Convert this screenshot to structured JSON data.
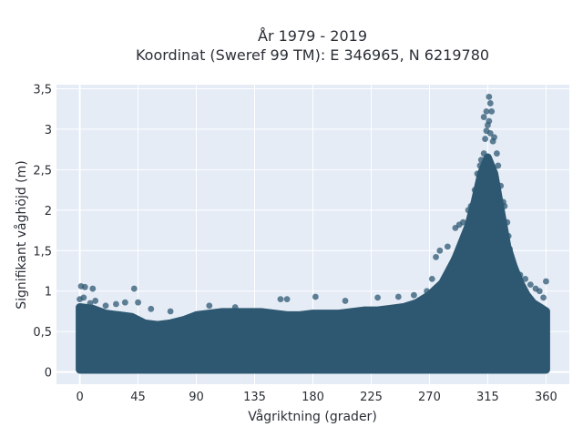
{
  "chart_data": {
    "type": "scatter",
    "title": "År 1979 - 2019",
    "subtitle": "Koordinat (Sweref 99 TM): E 346965, N 6219780",
    "xlabel": "Vågriktning (grader)",
    "ylabel": "Signifikant våghöjd (m)",
    "xlim": [
      -18,
      378
    ],
    "ylim": [
      -0.15,
      3.55
    ],
    "xticks": [
      0,
      45,
      90,
      135,
      180,
      225,
      270,
      315,
      360
    ],
    "xtick_labels": [
      "0",
      "45",
      "90",
      "135",
      "180",
      "225",
      "270",
      "315",
      "360"
    ],
    "yticks": [
      0,
      0.5,
      1,
      1.5,
      2,
      2.5,
      3,
      3.5
    ],
    "ytick_labels": [
      "0",
      "0,5",
      "1",
      "1,5",
      "2",
      "2,5",
      "3",
      "3,5"
    ],
    "grid": true,
    "background": "#e5ecf6",
    "marker_color": "#2e5871",
    "envelope": {
      "x": [
        0,
        10,
        20,
        30,
        40,
        50,
        60,
        70,
        80,
        90,
        100,
        110,
        120,
        130,
        140,
        150,
        160,
        170,
        180,
        190,
        200,
        210,
        220,
        230,
        240,
        250,
        260,
        270,
        280,
        290,
        300,
        305,
        310,
        315,
        320,
        325,
        330,
        335,
        340,
        345,
        350,
        355,
        360
      ],
      "y_max": [
        0.8,
        0.78,
        0.72,
        0.7,
        0.68,
        0.6,
        0.58,
        0.6,
        0.64,
        0.7,
        0.72,
        0.74,
        0.74,
        0.74,
        0.74,
        0.72,
        0.7,
        0.7,
        0.72,
        0.72,
        0.72,
        0.74,
        0.76,
        0.76,
        0.78,
        0.8,
        0.85,
        0.95,
        1.1,
        1.4,
        1.8,
        2.1,
        2.45,
        2.65,
        2.45,
        2.0,
        1.55,
        1.3,
        1.1,
        0.95,
        0.85,
        0.8,
        0.75
      ]
    },
    "series": [
      {
        "values": [
          [
            1,
            1.06
          ],
          [
            4,
            1.05
          ],
          [
            10,
            1.03
          ],
          [
            42,
            1.03
          ],
          [
            0,
            0.9
          ],
          [
            3,
            0.92
          ],
          [
            8,
            0.85
          ],
          [
            12,
            0.88
          ],
          [
            20,
            0.82
          ],
          [
            28,
            0.84
          ],
          [
            35,
            0.86
          ],
          [
            45,
            0.86
          ],
          [
            55,
            0.78
          ],
          [
            70,
            0.75
          ],
          [
            100,
            0.82
          ],
          [
            120,
            0.8
          ],
          [
            155,
            0.9
          ],
          [
            160,
            0.9
          ],
          [
            182,
            0.93
          ],
          [
            205,
            0.88
          ],
          [
            230,
            0.92
          ],
          [
            246,
            0.93
          ],
          [
            258,
            0.95
          ],
          [
            268,
            1.0
          ],
          [
            272,
            1.15
          ],
          [
            275,
            1.42
          ],
          [
            278,
            1.5
          ],
          [
            284,
            1.55
          ],
          [
            289,
            1.4
          ],
          [
            290,
            1.78
          ],
          [
            293,
            1.82
          ],
          [
            296,
            1.85
          ],
          [
            297,
            1.65
          ],
          [
            300,
            2.0
          ],
          [
            302,
            2.05
          ],
          [
            305,
            2.25
          ],
          [
            307,
            2.45
          ],
          [
            309,
            2.55
          ],
          [
            310,
            2.62
          ],
          [
            312,
            2.7
          ],
          [
            313,
            2.88
          ],
          [
            314,
            2.98
          ],
          [
            315,
            3.05
          ],
          [
            316,
            3.1
          ],
          [
            317,
            2.95
          ],
          [
            318,
            3.22
          ],
          [
            319,
            2.85
          ],
          [
            320,
            2.9
          ],
          [
            322,
            2.7
          ],
          [
            323,
            2.55
          ],
          [
            325,
            2.3
          ],
          [
            327,
            2.1
          ],
          [
            328,
            2.05
          ],
          [
            330,
            1.85
          ],
          [
            331,
            1.68
          ],
          [
            332,
            1.52
          ],
          [
            333,
            1.35
          ],
          [
            335,
            1.3
          ],
          [
            337,
            1.25
          ],
          [
            340,
            1.2
          ],
          [
            344,
            1.15
          ],
          [
            348,
            1.08
          ],
          [
            352,
            1.03
          ],
          [
            355,
            1.0
          ],
          [
            358,
            0.92
          ],
          [
            360,
            1.12
          ],
          [
            316,
            3.4
          ],
          [
            317,
            3.32
          ],
          [
            312,
            3.15
          ],
          [
            314,
            3.22
          ]
        ]
      }
    ]
  }
}
